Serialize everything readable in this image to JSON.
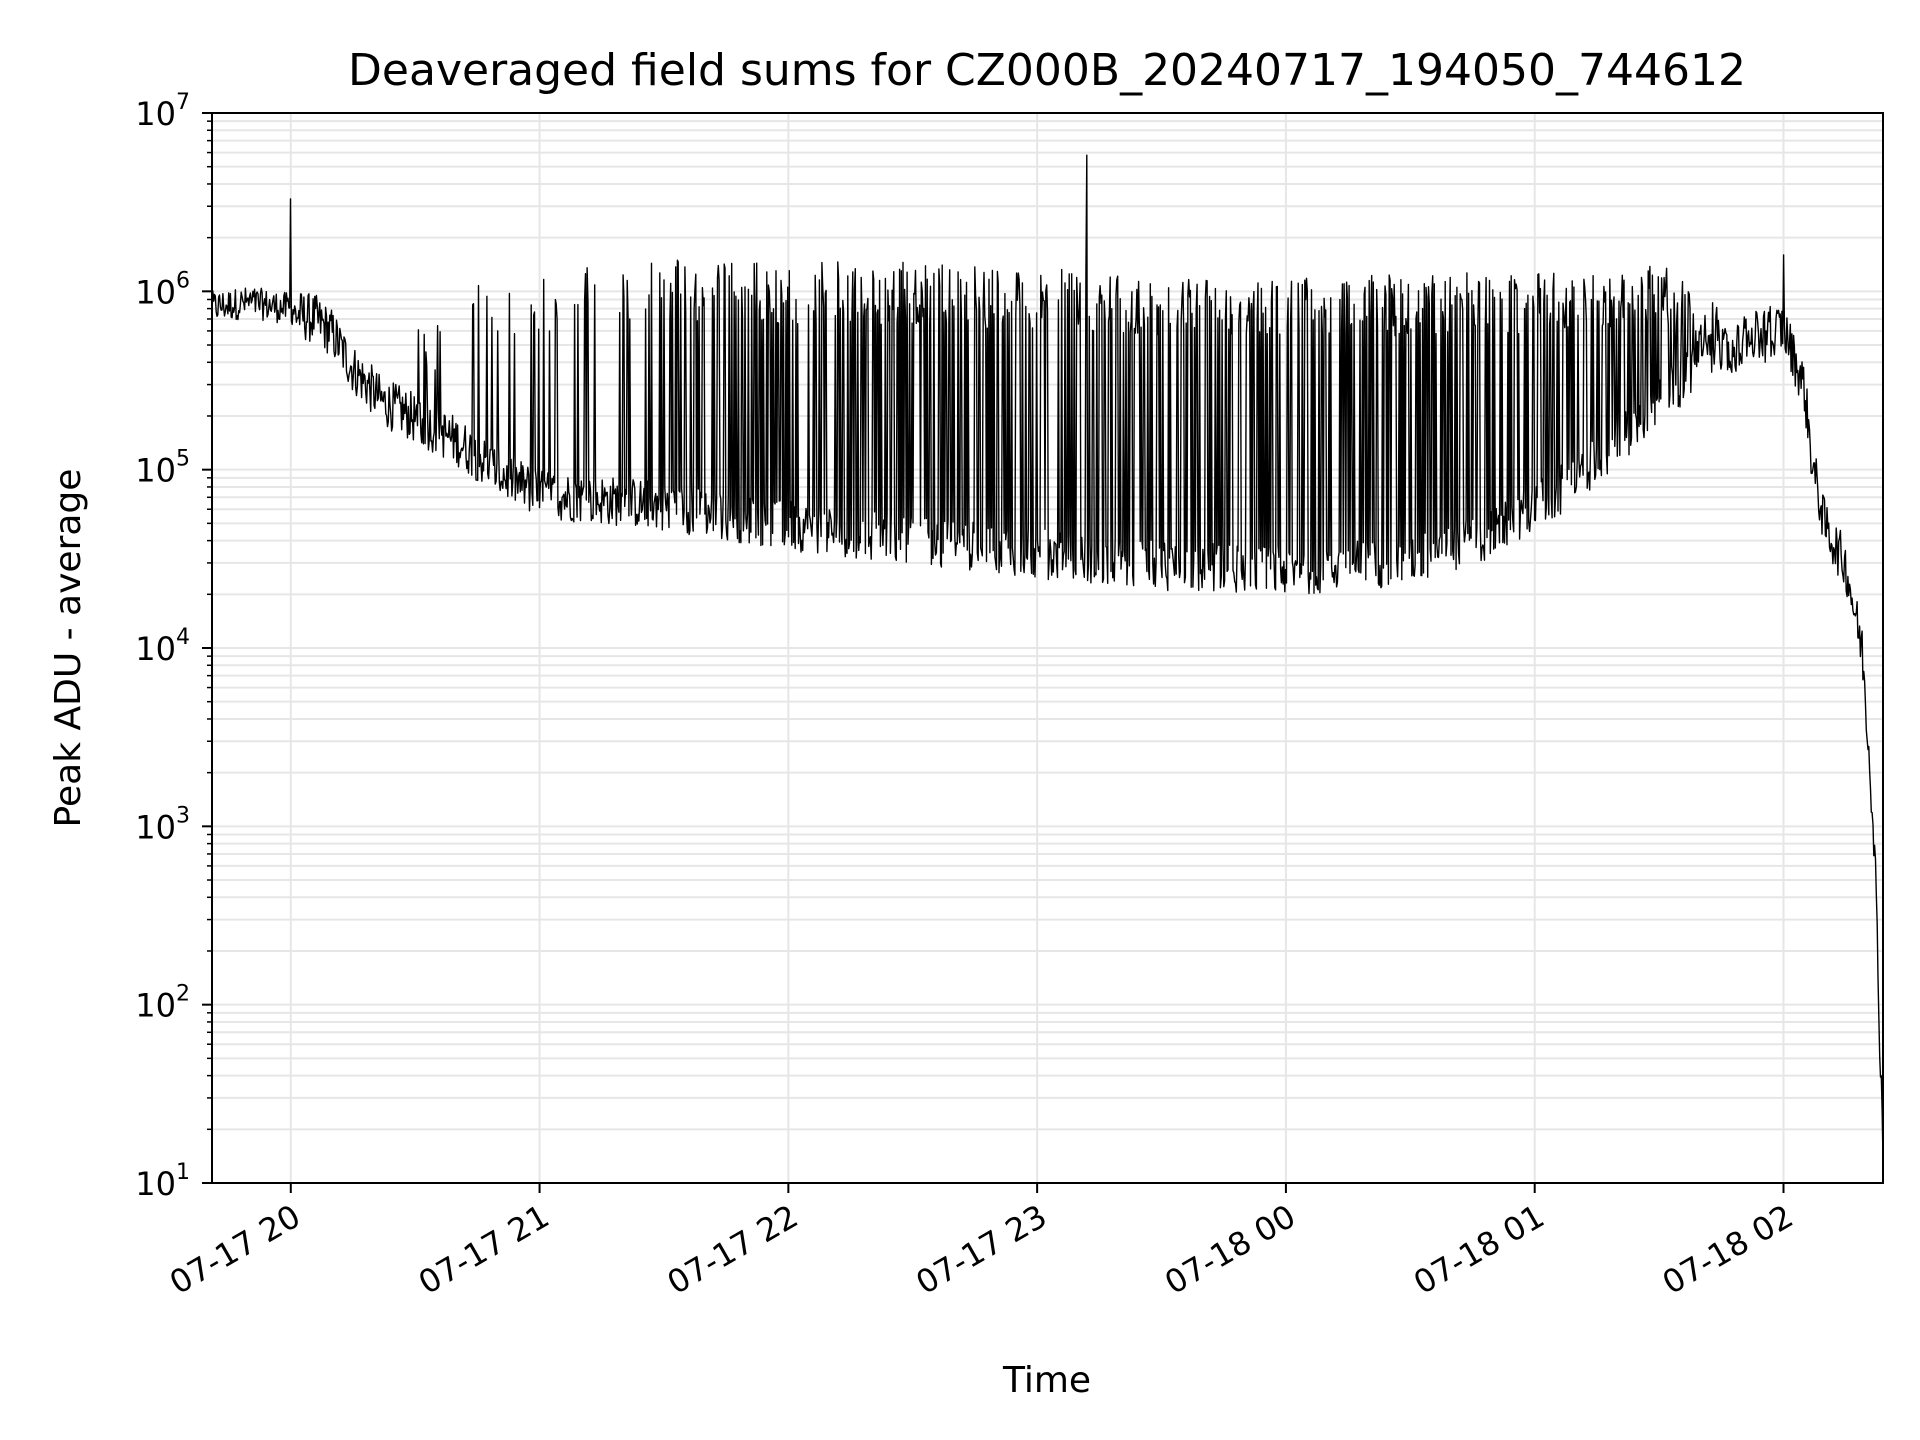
{
  "chart_data": {
    "type": "line",
    "title": "Deaveraged field sums for CZ000B_20240717_194050_744612",
    "xlabel": "Time",
    "ylabel": "Peak ADU - average",
    "yscale": "log",
    "ylim": [
      10,
      10000000
    ],
    "xlim": [
      "2024-07-17 19:41",
      "2024-07-18 02:24"
    ],
    "grid": true,
    "colors": {
      "line": "#000000",
      "grid": "#e6e6e6",
      "axes": "#000000"
    },
    "x_ticks": [
      {
        "t": "2024-07-17 20:00",
        "label": "07-17 20"
      },
      {
        "t": "2024-07-17 21:00",
        "label": "07-17 21"
      },
      {
        "t": "2024-07-17 22:00",
        "label": "07-17 22"
      },
      {
        "t": "2024-07-17 23:00",
        "label": "07-17 23"
      },
      {
        "t": "2024-07-18 00:00",
        "label": "07-18 00"
      },
      {
        "t": "2024-07-18 01:00",
        "label": "07-18 01"
      },
      {
        "t": "2024-07-18 02:00",
        "label": "07-18 02"
      }
    ],
    "y_ticks": [
      {
        "value": 10,
        "base": "10",
        "exp": "1"
      },
      {
        "value": 100,
        "base": "10",
        "exp": "2"
      },
      {
        "value": 1000,
        "base": "10",
        "exp": "3"
      },
      {
        "value": 10000,
        "base": "10",
        "exp": "4"
      },
      {
        "value": 100000,
        "base": "10",
        "exp": "5"
      },
      {
        "value": 1000000,
        "base": "10",
        "exp": "6"
      },
      {
        "value": 10000000,
        "base": "10",
        "exp": "7"
      }
    ],
    "series": [
      {
        "baseline": [
          {
            "t": "2024-07-17 19:41",
            "y": 800000
          },
          {
            "t": "2024-07-17 19:50",
            "y": 850000
          },
          {
            "t": "2024-07-17 20:00",
            "y": 780000
          },
          {
            "t": "2024-07-17 20:06",
            "y": 720000
          },
          {
            "t": "2024-07-17 20:10",
            "y": 600000
          },
          {
            "t": "2024-07-17 20:15",
            "y": 380000
          },
          {
            "t": "2024-07-17 20:22",
            "y": 250000
          },
          {
            "t": "2024-07-17 20:30",
            "y": 200000
          },
          {
            "t": "2024-07-17 20:40",
            "y": 150000
          },
          {
            "t": "2024-07-17 20:50",
            "y": 100000
          },
          {
            "t": "2024-07-17 21:00",
            "y": 75000
          },
          {
            "t": "2024-07-17 21:30",
            "y": 65000
          },
          {
            "t": "2024-07-17 22:00",
            "y": 50000
          },
          {
            "t": "2024-07-17 22:30",
            "y": 42000
          },
          {
            "t": "2024-07-17 23:00",
            "y": 35000
          },
          {
            "t": "2024-07-17 23:30",
            "y": 30000
          },
          {
            "t": "2024-07-18 00:00",
            "y": 28000
          },
          {
            "t": "2024-07-18 00:30",
            "y": 32000
          },
          {
            "t": "2024-07-18 00:50",
            "y": 45000
          },
          {
            "t": "2024-07-18 01:10",
            "y": 90000
          },
          {
            "t": "2024-07-18 01:30",
            "y": 250000
          },
          {
            "t": "2024-07-18 01:45",
            "y": 500000
          },
          {
            "t": "2024-07-18 02:00",
            "y": 650000
          },
          {
            "t": "2024-07-18 02:05",
            "y": 300000
          },
          {
            "t": "2024-07-18 02:07",
            "y": 110000
          },
          {
            "t": "2024-07-18 02:10",
            "y": 50000
          },
          {
            "t": "2024-07-18 02:15",
            "y": 30000
          },
          {
            "t": "2024-07-18 02:19",
            "y": 10000
          },
          {
            "t": "2024-07-18 02:21",
            "y": 2000
          },
          {
            "t": "2024-07-18 02:22",
            "y": 800
          },
          {
            "t": "2024-07-18 02:23",
            "y": 100
          },
          {
            "t": "2024-07-18 02:24",
            "y": 18
          }
        ],
        "upper_envelope": [
          {
            "t": "2024-07-17 19:41",
            "y": 1100000
          },
          {
            "t": "2024-07-17 20:00",
            "y": 1100000
          },
          {
            "t": "2024-07-17 20:30",
            "y": 600000
          },
          {
            "t": "2024-07-17 20:45",
            "y": 1200000
          },
          {
            "t": "2024-07-17 21:30",
            "y": 1500000
          },
          {
            "t": "2024-07-17 22:30",
            "y": 1450000
          },
          {
            "t": "2024-07-17 23:30",
            "y": 1250000
          },
          {
            "t": "2024-07-18 00:30",
            "y": 1250000
          },
          {
            "t": "2024-07-18 01:00",
            "y": 1300000
          },
          {
            "t": "2024-07-18 01:30",
            "y": 1450000
          },
          {
            "t": "2024-07-18 01:45",
            "y": 800000
          },
          {
            "t": "2024-07-18 02:00",
            "y": 700000
          }
        ],
        "spikes": [
          {
            "t": "2024-07-17 20:00",
            "y": 3300000
          },
          {
            "t": "2024-07-17 23:12",
            "y": 5800000
          },
          {
            "t": "2024-07-18 02:00",
            "y": 1600000
          }
        ]
      }
    ]
  }
}
